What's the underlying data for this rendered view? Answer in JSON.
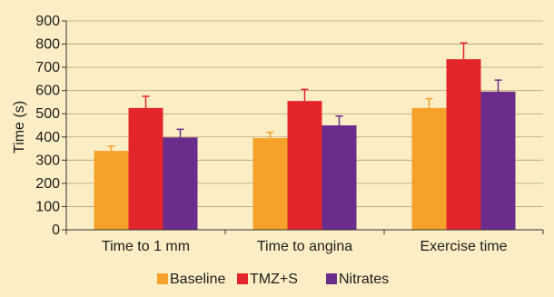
{
  "chart_data": {
    "type": "bar",
    "title": "",
    "xlabel": "",
    "ylabel": "Time (s)",
    "ylim": [
      0,
      900
    ],
    "yticks": [
      0,
      100,
      200,
      300,
      400,
      500,
      600,
      700,
      800,
      900
    ],
    "grid": true,
    "legend_position": "bottom",
    "categories": [
      "Time to 1 mm",
      "Time to angina",
      "Exercise time"
    ],
    "series": [
      {
        "name": "Baseline",
        "color": "#f5a12a",
        "values": [
          340,
          395,
          525
        ],
        "errors": [
          20,
          25,
          40
        ]
      },
      {
        "name": "TMZ+S",
        "color": "#e3262b",
        "values": [
          525,
          555,
          735
        ],
        "errors": [
          50,
          50,
          70
        ]
      },
      {
        "name": "Nitrates",
        "color": "#6a2d8c",
        "values": [
          398,
          450,
          595
        ],
        "errors": [
          35,
          40,
          50
        ]
      }
    ]
  }
}
